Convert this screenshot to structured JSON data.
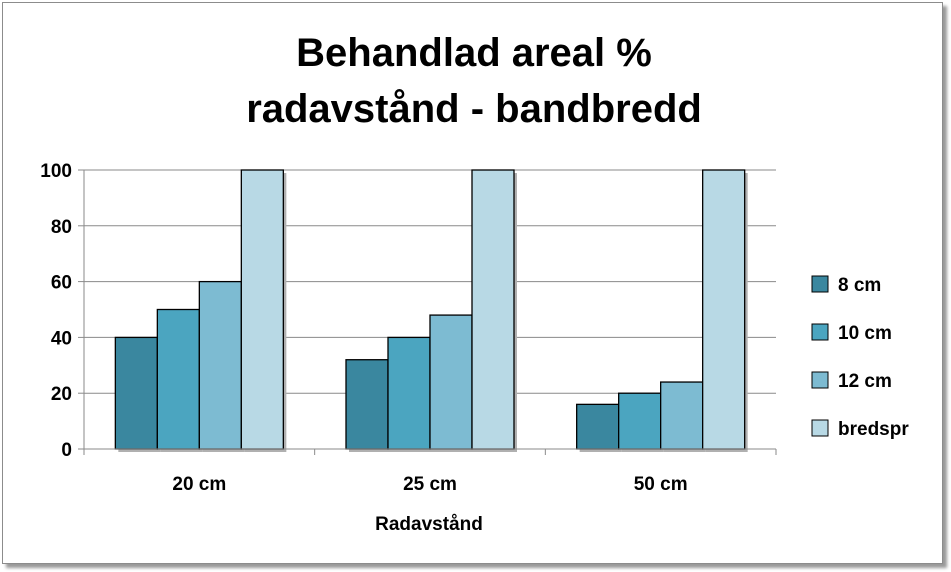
{
  "chart_data": {
    "type": "bar",
    "title_lines": [
      "Behandlad areal %",
      "radavstånd  - bandbredd"
    ],
    "xlabel": "Radavstånd",
    "ylabel": "",
    "categories": [
      "20 cm",
      "25 cm",
      "50 cm"
    ],
    "series": [
      {
        "name": "8 cm",
        "values": [
          40,
          32,
          16
        ],
        "color": "#3a879f"
      },
      {
        "name": "10 cm",
        "values": [
          50,
          40,
          20
        ],
        "color": "#4ba5c0"
      },
      {
        "name": "12 cm",
        "values": [
          60,
          48,
          24
        ],
        "color": "#7dbbd2"
      },
      {
        "name": "bredspr",
        "values": [
          100,
          100,
          100
        ],
        "color": "#b8d9e5"
      }
    ],
    "ylim": [
      0,
      100
    ],
    "yticks": [
      "0",
      "20",
      "40",
      "60",
      "80",
      "100"
    ],
    "grid": true,
    "legend_position": "right"
  }
}
